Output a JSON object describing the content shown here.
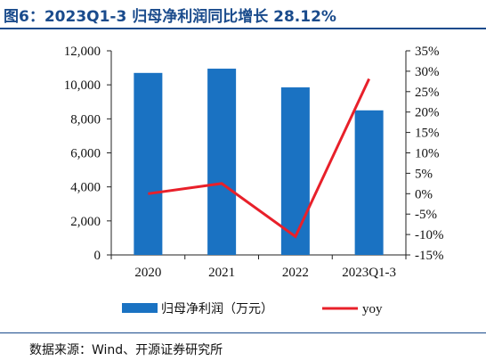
{
  "title": "图6：2023Q1-3 归母净利润同比增长 28.12%",
  "source": "数据来源：Wind、开源证券研究所",
  "colors": {
    "bar": "#1a72c2",
    "line": "#e8202a",
    "title": "#1a4b8c"
  },
  "chart_data": {
    "type": "bar",
    "categories": [
      "2020",
      "2021",
      "2022",
      "2023Q1-3"
    ],
    "series": [
      {
        "name": "归母净利润（万元）",
        "type": "bar",
        "axis": "left",
        "values": [
          10700,
          10950,
          9850,
          8500
        ]
      },
      {
        "name": "yoy",
        "type": "line",
        "axis": "right",
        "values": [
          0.0,
          2.5,
          -10.5,
          28.12
        ]
      }
    ],
    "y_left": {
      "min": 0,
      "max": 12000,
      "ticks": [
        "0",
        "2,000",
        "4,000",
        "6,000",
        "8,000",
        "10,000",
        "12,000"
      ]
    },
    "y_right": {
      "min": -15,
      "max": 35,
      "ticks": [
        "-15%",
        "-10%",
        "-5%",
        "0%",
        "5%",
        "10%",
        "15%",
        "20%",
        "25%",
        "30%",
        "35%"
      ]
    },
    "legend_position": "bottom",
    "grid": false
  }
}
